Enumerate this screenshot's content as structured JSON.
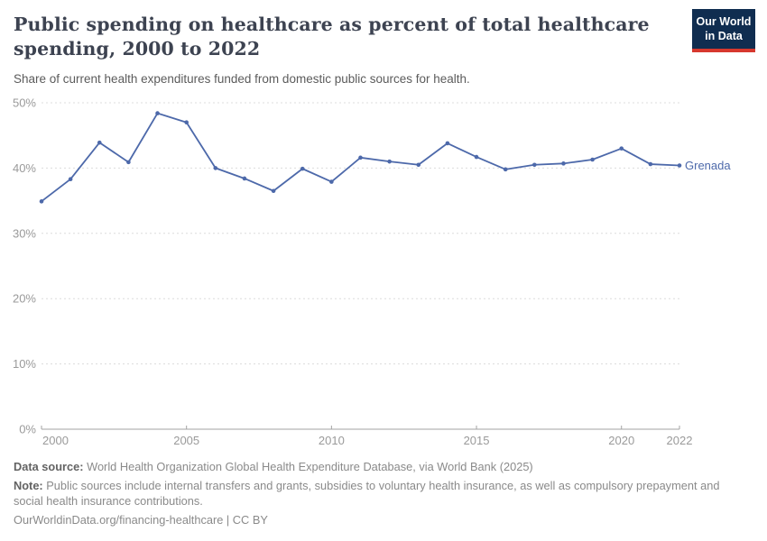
{
  "header": {
    "title": "Public spending on healthcare as percent of total healthcare spending, 2000 to 2022",
    "title_line1": "Public spending on healthcare as percent of total healthcare",
    "title_line2": "spending, 2000 to 2022",
    "subtitle": "Share of current health expenditures funded from domestic public sources for health."
  },
  "logo": {
    "line1": "Our World",
    "line2": "in Data"
  },
  "chart_data": {
    "type": "line",
    "title": "Public spending on healthcare as percent of total healthcare spending, 2000 to 2022",
    "xlabel": "",
    "ylabel": "",
    "x": [
      2000,
      2001,
      2002,
      2003,
      2004,
      2005,
      2006,
      2007,
      2008,
      2009,
      2010,
      2011,
      2012,
      2013,
      2014,
      2015,
      2016,
      2017,
      2018,
      2019,
      2020,
      2021,
      2022
    ],
    "series": [
      {
        "name": "Grenada",
        "values": [
          34.9,
          38.3,
          43.9,
          40.9,
          48.4,
          47.0,
          40.0,
          38.4,
          36.5,
          39.9,
          37.9,
          41.6,
          41.0,
          40.5,
          43.8,
          41.7,
          39.8,
          40.5,
          40.7,
          41.3,
          43.0,
          40.6,
          40.4
        ]
      }
    ],
    "ylim": [
      0,
      50
    ],
    "yticks": [
      0,
      10,
      20,
      30,
      40,
      50
    ],
    "ytick_suffix": "%",
    "xticks": [
      2000,
      2005,
      2010,
      2015,
      2020,
      2022
    ],
    "grid": "horizontal-dashed",
    "legend_position": "end-of-line-label"
  },
  "footer": {
    "source_label": "Data source:",
    "source_text": "World Health Organization Global Health Expenditure Database, via World Bank (2025)",
    "note_label": "Note:",
    "note_text": "Public sources include internal transfers and grants, subsidies to voluntary health insurance, as well as compulsory prepayment and social health insurance contributions.",
    "citation": "OurWorldinData.org/financing-healthcare | CC BY"
  },
  "colors": {
    "accent_line": "#4d69aa",
    "grid": "#dcdcdc",
    "axis": "#a3a3a3",
    "tick_label": "#9a9a9a",
    "logo_navy": "#102d50",
    "logo_red": "#d7382e"
  }
}
